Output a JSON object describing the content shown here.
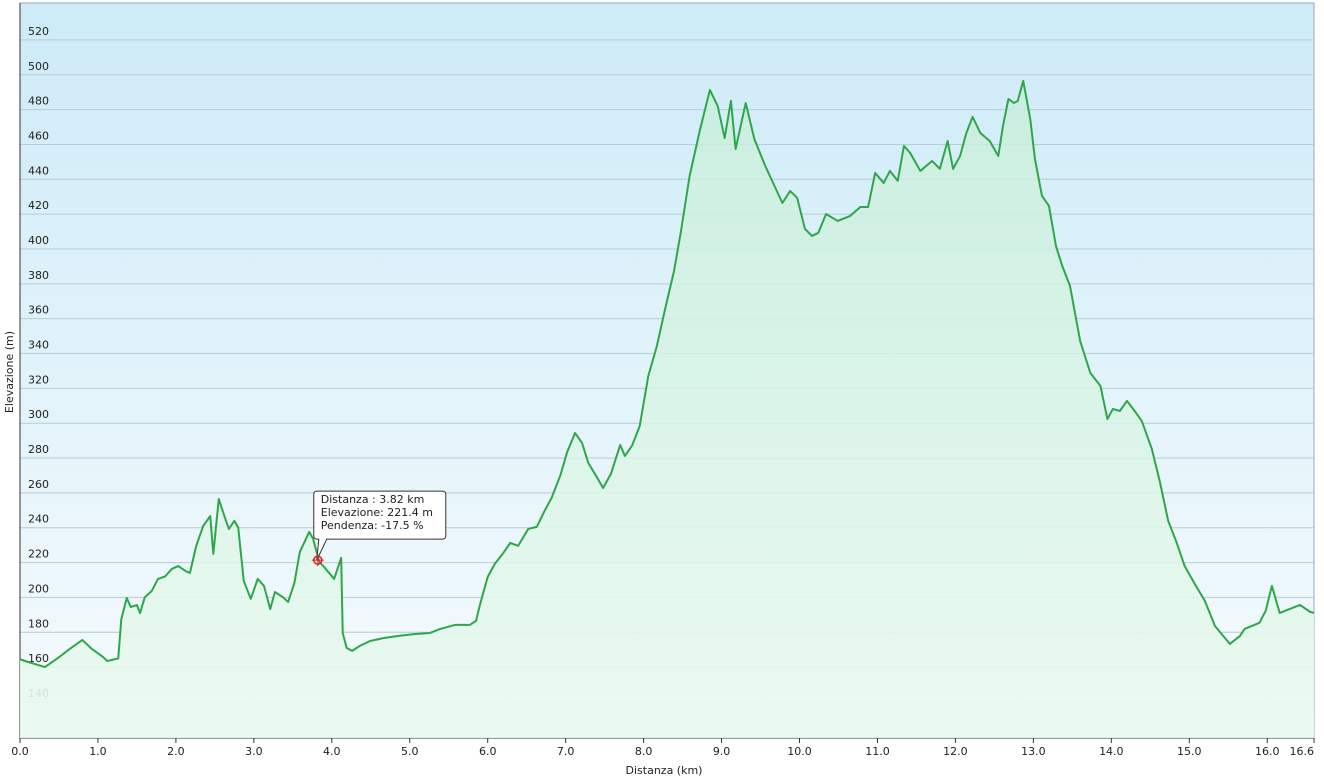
{
  "chart_data": {
    "type": "area",
    "x_label": "Distanza  (km)",
    "y_label": "Elevazione (m)",
    "x": [
      0,
      0.1,
      0.32,
      0.51,
      0.64,
      0.8,
      0.92,
      1.06,
      1.12,
      1.26,
      1.3,
      1.37,
      1.42,
      1.5,
      1.54,
      1.6,
      1.69,
      1.77,
      1.86,
      1.95,
      2.03,
      2.13,
      2.18,
      2.26,
      2.35,
      2.44,
      2.48,
      2.55,
      2.63,
      2.68,
      2.75,
      2.8,
      2.87,
      2.96,
      3.05,
      3.13,
      3.21,
      3.27,
      3.37,
      3.44,
      3.52,
      3.59,
      3.71,
      3.76,
      3.84,
      3.9,
      4.03,
      4.12,
      4.14,
      4.19,
      4.26,
      4.36,
      4.49,
      4.68,
      4.87,
      5.07,
      5.26,
      5.39,
      5.58,
      5.77,
      5.85,
      5.9,
      6.0,
      6.09,
      6.2,
      6.29,
      6.39,
      6.52,
      6.63,
      6.73,
      6.82,
      6.93,
      7.02,
      7.12,
      7.21,
      7.29,
      7.39,
      7.48,
      7.58,
      7.7,
      7.76,
      7.85,
      7.95,
      8.06,
      8.17,
      8.27,
      8.39,
      8.48,
      8.59,
      8.72,
      8.85,
      8.95,
      9.04,
      9.12,
      9.18,
      9.31,
      9.42,
      9.56,
      9.78,
      9.88,
      9.97,
      10.07,
      10.16,
      10.24,
      10.34,
      10.49,
      10.65,
      10.78,
      10.88,
      10.97,
      11.08,
      11.16,
      11.26,
      11.34,
      11.42,
      11.55,
      11.7,
      11.8,
      11.9,
      11.97,
      12.06,
      12.14,
      12.22,
      12.32,
      12.44,
      12.55,
      12.61,
      12.68,
      12.75,
      12.8,
      12.87,
      12.96,
      13.02,
      13.11,
      13.2,
      13.29,
      13.37,
      13.47,
      13.6,
      13.73,
      13.86,
      13.95,
      14.02,
      14.11,
      14.2,
      14.3,
      14.39,
      14.52,
      14.62,
      14.73,
      14.83,
      14.94,
      15.07,
      15.2,
      15.33,
      15.52,
      15.65,
      15.71,
      15.9,
      15.98,
      16.06,
      16.16,
      16.29,
      16.42,
      16.55,
      16.6
    ],
    "series": [
      {
        "name": "Elevazione",
        "color": "#2ea64a",
        "values": [
          164.5,
          163,
          160,
          166,
          170.5,
          175.6,
          170.5,
          166,
          163.5,
          165,
          187.6,
          199.7,
          194.5,
          195.6,
          191,
          200,
          203.7,
          210.6,
          212,
          216.4,
          218,
          215,
          214,
          229.5,
          241,
          246.7,
          225,
          256.5,
          245.6,
          239.3,
          244,
          240,
          209.5,
          199.2,
          210.6,
          206.6,
          193.3,
          203.1,
          200.2,
          197.4,
          208.3,
          226.1,
          237.6,
          233.6,
          220.4,
          217.5,
          210.6,
          222.7,
          179.6,
          171,
          169.3,
          172.2,
          175,
          176.8,
          178,
          179,
          179.6,
          181.9,
          184.2,
          184.2,
          186.5,
          195.7,
          211.8,
          219.2,
          225.5,
          231.3,
          229.6,
          239.3,
          240.5,
          249.7,
          257.2,
          269.8,
          283.5,
          294.4,
          288.7,
          277.2,
          269.8,
          262.8,
          270.9,
          287.5,
          281.2,
          287,
          298.4,
          327.1,
          344.3,
          364.4,
          387.4,
          410.4,
          441.9,
          467.8,
          491.3,
          482.1,
          463.7,
          485,
          457.4,
          483.8,
          463.2,
          447.7,
          426.4,
          433.3,
          429.3,
          411.5,
          407.5,
          409.2,
          420.1,
          416.1,
          419,
          424.1,
          424.1,
          443.6,
          437.9,
          444.8,
          439.1,
          459.2,
          455.1,
          444.8,
          450.5,
          446,
          462,
          446,
          453.4,
          466.6,
          475.8,
          466.6,
          462,
          453.4,
          470.6,
          486.1,
          483.8,
          485,
          496.5,
          474.6,
          451.7,
          430.5,
          424.7,
          401.7,
          390.3,
          378.8,
          347.2,
          328.9,
          321.4,
          302.4,
          308.2,
          307,
          312.8,
          307,
          301.3,
          285.2,
          266.9,
          243.9,
          232.4,
          218.1,
          207.8,
          198,
          183.6,
          173.3,
          177.9,
          181.9,
          185.4,
          192.3,
          206.6,
          191.1,
          193.4,
          195.7,
          191.7,
          191.1
        ]
      }
    ],
    "xlim": [
      0,
      16.6
    ],
    "ylim": [
      119.3,
      541.2
    ],
    "xticks": [
      {
        "value": 0,
        "label": "0.0"
      },
      {
        "value": 1,
        "label": "1.0"
      },
      {
        "value": 2,
        "label": "2.0"
      },
      {
        "value": 3,
        "label": "3.0"
      },
      {
        "value": 4,
        "label": "4.0"
      },
      {
        "value": 5,
        "label": "5.0"
      },
      {
        "value": 6,
        "label": "6.0"
      },
      {
        "value": 7,
        "label": "7.0"
      },
      {
        "value": 8,
        "label": "8.0"
      },
      {
        "value": 9,
        "label": "9.0"
      },
      {
        "value": 10,
        "label": "10.0"
      },
      {
        "value": 11,
        "label": "11.0"
      },
      {
        "value": 12,
        "label": "12.0"
      },
      {
        "value": 13,
        "label": "13.0"
      },
      {
        "value": 14,
        "label": "14.0"
      },
      {
        "value": 15,
        "label": "15.0"
      },
      {
        "value": 16,
        "label": "16.0"
      },
      16.6
    ],
    "yticks": [
      140,
      160,
      180,
      200,
      220,
      240,
      260,
      280,
      300,
      320,
      340,
      360,
      380,
      400,
      420,
      440,
      460,
      480,
      500,
      520
    ],
    "grid": true,
    "tooltip": {
      "x": 3.82,
      "y": 221.4,
      "lines": [
        "Distanza : 3.82 km",
        "Elevazione: 221.4 m",
        "Pendenza: -17.5 %"
      ]
    }
  }
}
